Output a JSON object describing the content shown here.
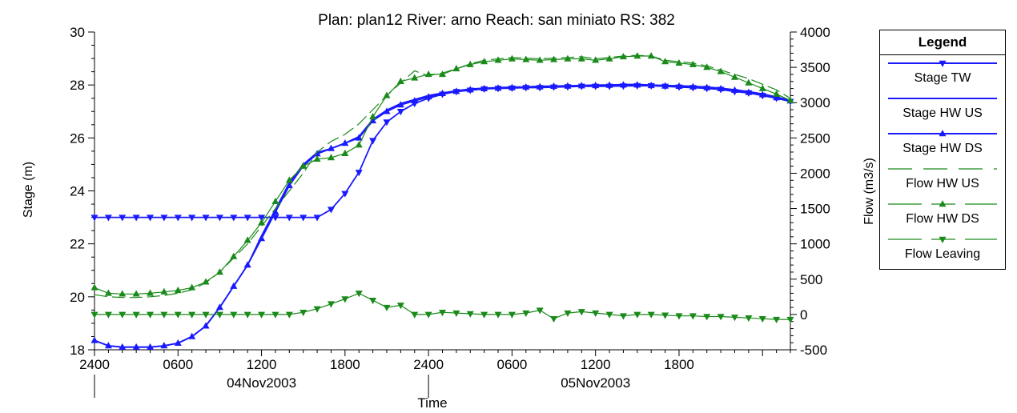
{
  "chart_data": {
    "type": "line",
    "title": "Plan: plan12   River: arno   Reach: san miniato   RS: 382",
    "xlabel": "Time",
    "ylabel": "Stage (m)",
    "y2label": "Flow (m3/s)",
    "ylim": [
      18,
      30
    ],
    "y2lim": [
      -500,
      4000
    ],
    "xlim": [
      0,
      50
    ],
    "x_ticks": [
      {
        "x": 0,
        "label": "2400"
      },
      {
        "x": 6,
        "label": "0600"
      },
      {
        "x": 12,
        "label": "1200"
      },
      {
        "x": 18,
        "label": "1800"
      },
      {
        "x": 24,
        "label": "2400"
      },
      {
        "x": 30,
        "label": "0600"
      },
      {
        "x": 36,
        "label": "1200"
      },
      {
        "x": 42,
        "label": "1800"
      }
    ],
    "y_ticks": [
      18,
      20,
      22,
      24,
      26,
      28,
      30
    ],
    "y2_ticks": [
      -500,
      0,
      500,
      1000,
      1500,
      2000,
      2500,
      3000,
      3500,
      4000
    ],
    "date_labels": [
      {
        "x": 12,
        "label": "04Nov2003"
      },
      {
        "x": 36,
        "label": "05Nov2003"
      }
    ],
    "legend": {
      "title": "Legend",
      "placement": "right"
    },
    "series": [
      {
        "name": "Stage TW",
        "axis": "left",
        "color": "#1a1aff",
        "marker": "down",
        "dash": "",
        "marker_every": 1,
        "x": [
          0,
          1,
          2,
          3,
          4,
          5,
          6,
          7,
          8,
          9,
          10,
          11,
          12,
          13,
          14,
          15,
          16,
          17,
          18,
          19,
          20,
          21,
          22,
          23,
          24,
          25,
          26,
          27,
          28,
          29,
          30,
          31,
          32,
          33,
          34,
          35,
          36,
          37,
          38,
          39,
          40,
          41,
          42,
          43,
          44,
          45,
          46,
          47,
          48,
          49,
          50
        ],
        "y": [
          23.0,
          23.0,
          23.0,
          23.0,
          23.0,
          23.0,
          23.0,
          23.0,
          23.0,
          23.0,
          23.0,
          23.0,
          23.0,
          23.0,
          23.0,
          23.0,
          23.0,
          23.3,
          23.9,
          24.7,
          25.9,
          26.6,
          27.0,
          27.3,
          27.5,
          27.65,
          27.75,
          27.8,
          27.85,
          27.87,
          27.88,
          27.9,
          27.9,
          27.92,
          27.93,
          27.95,
          27.95,
          27.95,
          27.96,
          27.97,
          27.97,
          27.95,
          27.92,
          27.9,
          27.87,
          27.83,
          27.75,
          27.7,
          27.6,
          27.5,
          27.38
        ]
      },
      {
        "name": "Stage HW US",
        "axis": "left",
        "color": "#1a1aff",
        "marker": "none",
        "dash": "",
        "marker_every": 1,
        "x": [
          0,
          1,
          2,
          3,
          4,
          5,
          6,
          7,
          8,
          9,
          10,
          11,
          12,
          13,
          14,
          15,
          16,
          17,
          18,
          19,
          20,
          21,
          22,
          23,
          24,
          25,
          26,
          27,
          28,
          29,
          30,
          31,
          32,
          33,
          34,
          35,
          36,
          37,
          38,
          39,
          40,
          41,
          42,
          43,
          44,
          45,
          46,
          47,
          48,
          49,
          50
        ],
        "y": [
          18.35,
          18.15,
          18.1,
          18.1,
          18.1,
          18.15,
          18.25,
          18.5,
          18.9,
          19.6,
          20.4,
          21.2,
          22.3,
          23.3,
          24.3,
          25.0,
          25.45,
          25.6,
          25.8,
          26.05,
          26.7,
          27.05,
          27.3,
          27.45,
          27.6,
          27.7,
          27.78,
          27.85,
          27.88,
          27.9,
          27.92,
          27.93,
          27.95,
          27.96,
          27.97,
          27.98,
          28.0,
          28.0,
          28.02,
          28.02,
          28.0,
          27.98,
          27.97,
          27.95,
          27.92,
          27.88,
          27.82,
          27.75,
          27.66,
          27.55,
          27.42
        ]
      },
      {
        "name": "Stage HW DS",
        "axis": "left",
        "color": "#1a1aff",
        "marker": "up",
        "dash": "",
        "marker_every": 1,
        "x": [
          0,
          1,
          2,
          3,
          4,
          5,
          6,
          7,
          8,
          9,
          10,
          11,
          12,
          13,
          14,
          15,
          16,
          17,
          18,
          19,
          20,
          21,
          22,
          23,
          24,
          25,
          26,
          27,
          28,
          29,
          30,
          31,
          32,
          33,
          34,
          35,
          36,
          37,
          38,
          39,
          40,
          41,
          42,
          43,
          44,
          45,
          46,
          47,
          48,
          49,
          50
        ],
        "y": [
          18.35,
          18.15,
          18.1,
          18.1,
          18.1,
          18.15,
          18.25,
          18.5,
          18.9,
          19.6,
          20.4,
          21.2,
          22.2,
          23.2,
          24.2,
          24.95,
          25.4,
          25.6,
          25.8,
          26.0,
          26.65,
          27.0,
          27.25,
          27.4,
          27.55,
          27.68,
          27.76,
          27.82,
          27.86,
          27.88,
          27.9,
          27.92,
          27.93,
          27.95,
          27.96,
          27.97,
          27.98,
          27.99,
          28.0,
          28.0,
          27.98,
          27.96,
          27.95,
          27.93,
          27.9,
          27.86,
          27.8,
          27.72,
          27.63,
          27.52,
          27.4
        ]
      },
      {
        "name": "Flow HW US",
        "axis": "right",
        "color": "#1a8a1a",
        "marker": "none",
        "dash": "16 6",
        "marker_every": 1,
        "x": [
          0,
          1,
          2,
          3,
          4,
          5,
          6,
          7,
          8,
          9,
          10,
          11,
          12,
          13,
          14,
          15,
          16,
          17,
          18,
          19,
          20,
          21,
          22,
          23,
          24,
          25,
          26,
          27,
          28,
          29,
          30,
          31,
          32,
          33,
          34,
          35,
          36,
          37,
          38,
          39,
          40,
          41,
          42,
          43,
          44,
          45,
          46,
          47,
          48,
          49,
          50
        ],
        "y": [
          280,
          250,
          240,
          240,
          250,
          270,
          300,
          350,
          450,
          600,
          800,
          1000,
          1250,
          1500,
          1750,
          2000,
          2300,
          2450,
          2550,
          2700,
          2900,
          3100,
          3280,
          3450,
          3380,
          3420,
          3480,
          3550,
          3600,
          3620,
          3640,
          3630,
          3620,
          3630,
          3640,
          3650,
          3620,
          3640,
          3660,
          3670,
          3660,
          3600,
          3580,
          3560,
          3520,
          3460,
          3400,
          3340,
          3260,
          3180,
          3060
        ]
      },
      {
        "name": "Flow HW DS",
        "axis": "right",
        "color": "#1a8a1a",
        "marker": "up",
        "dash": "",
        "marker_every": 1,
        "x": [
          0,
          1,
          2,
          3,
          4,
          5,
          6,
          7,
          8,
          9,
          10,
          11,
          12,
          13,
          14,
          15,
          16,
          17,
          18,
          19,
          20,
          21,
          22,
          23,
          24,
          25,
          26,
          27,
          28,
          29,
          30,
          31,
          32,
          33,
          34,
          35,
          36,
          37,
          38,
          39,
          40,
          41,
          42,
          43,
          44,
          45,
          46,
          47,
          48,
          49,
          50
        ],
        "y": [
          380,
          300,
          290,
          290,
          300,
          320,
          340,
          380,
          460,
          600,
          820,
          1050,
          1300,
          1600,
          1900,
          2100,
          2200,
          2220,
          2280,
          2400,
          2800,
          3100,
          3300,
          3350,
          3400,
          3400,
          3480,
          3540,
          3580,
          3600,
          3620,
          3610,
          3600,
          3610,
          3620,
          3620,
          3600,
          3620,
          3650,
          3660,
          3660,
          3580,
          3560,
          3540,
          3500,
          3440,
          3360,
          3280,
          3200,
          3120,
          3030
        ]
      },
      {
        "name": "Flow Leaving",
        "axis": "right",
        "color": "#1a8a1a",
        "marker": "down",
        "dash": "",
        "marker_every": 1,
        "x": [
          0,
          1,
          2,
          3,
          4,
          5,
          6,
          7,
          8,
          9,
          10,
          11,
          12,
          13,
          14,
          15,
          16,
          17,
          18,
          19,
          20,
          21,
          22,
          23,
          24,
          25,
          26,
          27,
          28,
          29,
          30,
          31,
          32,
          33,
          34,
          35,
          36,
          37,
          38,
          39,
          40,
          41,
          42,
          43,
          44,
          45,
          46,
          47,
          48,
          49,
          50
        ],
        "y": [
          0,
          0,
          0,
          0,
          0,
          0,
          0,
          0,
          0,
          0,
          0,
          0,
          0,
          0,
          0,
          30,
          80,
          150,
          220,
          300,
          200,
          100,
          130,
          0,
          0,
          30,
          20,
          10,
          0,
          0,
          0,
          20,
          60,
          -60,
          20,
          40,
          20,
          0,
          -20,
          0,
          0,
          -10,
          -20,
          -20,
          -30,
          -30,
          -40,
          -50,
          -60,
          -70,
          -70
        ]
      }
    ]
  }
}
